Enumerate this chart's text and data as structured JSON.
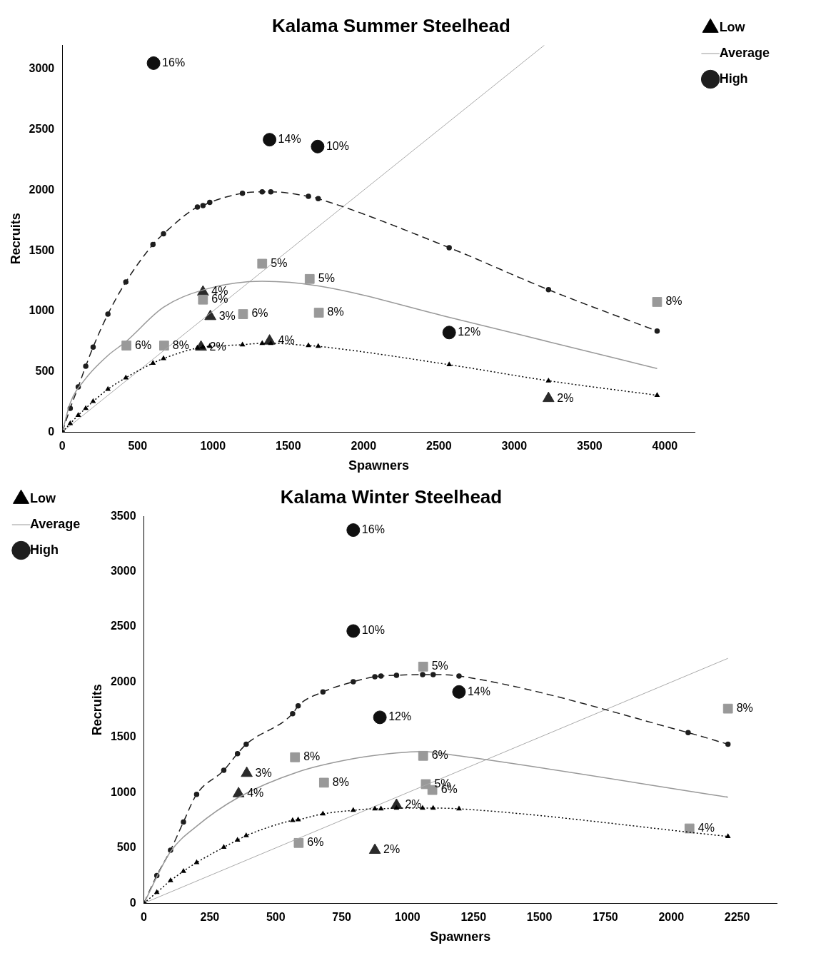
{
  "chart_data": [
    {
      "type": "line",
      "title": "Kalama Summer Steelhead",
      "xlabel": "Spawners",
      "ylabel": "Recruits",
      "xlim": [
        0,
        4200
      ],
      "ylim": [
        0,
        3200
      ],
      "xticks": [
        0,
        500,
        1000,
        1500,
        2000,
        2500,
        3000,
        3500,
        4000
      ],
      "yticks": [
        0,
        500,
        1000,
        1500,
        2000,
        2500,
        3000
      ],
      "legend": "top right",
      "series": [
        {
          "name": "Low",
          "type": "line",
          "color": "#000000",
          "marker": "triangle",
          "line_style": "dotted",
          "x": [
            0,
            53,
            106,
            156,
            205,
            303,
            422,
            602,
            672,
            897,
            934,
            979,
            1196,
            1327,
            1384,
            1634,
            1699,
            2568,
            3227,
            3948
          ],
          "values": [
            0,
            70,
            139,
            196,
            253,
            354,
            449,
            570,
            608,
            696,
            703,
            709,
            722,
            734,
            734,
            715,
            709,
            557,
            424,
            304
          ]
        },
        {
          "name": "Average",
          "type": "line",
          "color": "#999999",
          "marker": "none",
          "line_style": "solid",
          "x": [
            0,
            53,
            156,
            303,
            422,
            672,
            979,
            1327,
            1699,
            2568,
            3227,
            3948
          ],
          "values": [
            0,
            240,
            443,
            633,
            747,
            1032,
            1190,
            1247,
            1209,
            949,
            747,
            525
          ]
        },
        {
          "name": "High",
          "type": "line",
          "color": "#1e1e1e",
          "marker": "circle",
          "line_style": "dashed",
          "x": [
            0,
            53,
            106,
            156,
            205,
            303,
            422,
            602,
            672,
            897,
            934,
            979,
            1196,
            1327,
            1384,
            1634,
            1699,
            2568,
            3227,
            3948
          ],
          "values": [
            0,
            196,
            373,
            544,
            703,
            975,
            1241,
            1551,
            1639,
            1861,
            1873,
            1899,
            1975,
            1987,
            1987,
            1949,
            1930,
            1525,
            1177,
            835
          ]
        },
        {
          "type": "line",
          "color": "#aaaaaa",
          "marker": "none",
          "line_style": "solid",
          "x": [
            0,
            3200
          ],
          "values": [
            0,
            3200
          ]
        },
        {
          "type": "scatter",
          "color": "#101010",
          "marker": "circle",
          "x": [
            606,
            1376,
            1695,
            2568
          ],
          "values": [
            3051,
            2418,
            2361,
            823
          ]
        },
        {
          "type": "scatter",
          "color": "#999999",
          "marker": "square",
          "x": [
            1327,
            1642,
            934,
            1200,
            1703,
            426,
            676,
            3948
          ],
          "values": [
            1392,
            1266,
            1095,
            975,
            987,
            715,
            715,
            1076
          ]
        },
        {
          "type": "scatter",
          "color": "#2a2a2a",
          "marker": "triangle",
          "x": [
            934,
            983,
            921,
            1376,
            3227
          ],
          "values": [
            1158,
            956,
            703,
            753,
            278
          ]
        }
      ],
      "annotations": [
        {
          "text": "16%",
          "x": 606,
          "y": 3051
        },
        {
          "text": "14%",
          "x": 1376,
          "y": 2418
        },
        {
          "text": "10%",
          "x": 1695,
          "y": 2361
        },
        {
          "text": "12%",
          "x": 2568,
          "y": 823
        },
        {
          "text": "5%",
          "x": 1327,
          "y": 1392
        },
        {
          "text": "5%",
          "x": 1642,
          "y": 1266
        },
        {
          "text": "6%",
          "x": 934,
          "y": 1095
        },
        {
          "text": "6%",
          "x": 1200,
          "y": 975
        },
        {
          "text": "8%",
          "x": 1703,
          "y": 987
        },
        {
          "text": "6%",
          "x": 426,
          "y": 715
        },
        {
          "text": "8%",
          "x": 676,
          "y": 715
        },
        {
          "text": "8%",
          "x": 3948,
          "y": 1076
        },
        {
          "text": "4%",
          "x": 934,
          "y": 1158
        },
        {
          "text": "3%",
          "x": 983,
          "y": 956
        },
        {
          "text": "2%",
          "x": 921,
          "y": 703
        },
        {
          "text": "4%",
          "x": 1376,
          "y": 753
        },
        {
          "text": "2%",
          "x": 3227,
          "y": 278
        }
      ]
    },
    {
      "type": "line",
      "title": "Kalama Winter Steelhead",
      "xlabel": "Spawners",
      "ylabel": "Recruits",
      "xlim": [
        0,
        2400
      ],
      "ylim": [
        0,
        3500
      ],
      "xticks": [
        0,
        250,
        500,
        750,
        1000,
        1250,
        1500,
        1750,
        2000,
        2250
      ],
      "yticks": [
        0,
        500,
        1000,
        1500,
        2000,
        2500,
        3000,
        3500
      ],
      "legend": "top left",
      "series": [
        {
          "name": "Low",
          "type": "line",
          "color": "#000000",
          "marker": "triangle",
          "line_style": "dotted",
          "x": [
            0,
            49,
            101,
            150,
            200,
            303,
            355,
            388,
            564,
            585,
            679,
            794,
            876,
            899,
            958,
            1057,
            1097,
            1195,
            2215
          ],
          "values": [
            0,
            98,
            204,
            289,
            368,
            506,
            571,
            611,
            749,
            755,
            808,
            840,
            854,
            854,
            860,
            860,
            860,
            854,
            604
          ]
        },
        {
          "name": "Average",
          "type": "line",
          "color": "#999999",
          "marker": "none",
          "line_style": "solid",
          "x": [
            0,
            101,
            200,
            355,
            585,
            794,
            958,
            1057,
            1195,
            2215
          ],
          "values": [
            0,
            466,
            696,
            952,
            1188,
            1307,
            1359,
            1372,
            1333,
            959
          ]
        },
        {
          "name": "High",
          "type": "line",
          "color": "#1e1e1e",
          "marker": "circle",
          "line_style": "dashed",
          "x": [
            0,
            49,
            101,
            150,
            200,
            303,
            355,
            388,
            564,
            585,
            679,
            794,
            876,
            899,
            958,
            1057,
            1097,
            1195,
            2064,
            2215
          ],
          "values": [
            0,
            250,
            479,
            735,
            985,
            1202,
            1353,
            1438,
            1714,
            1786,
            1911,
            2003,
            2049,
            2055,
            2062,
            2068,
            2068,
            2055,
            1543,
            1438
          ]
        },
        {
          "type": "line",
          "color": "#aaaaaa",
          "marker": "none",
          "line_style": "solid",
          "x": [
            0,
            2215
          ],
          "values": [
            0,
            2215
          ]
        },
        {
          "type": "scatter",
          "color": "#101010",
          "marker": "circle",
          "x": [
            794,
            794,
            1195,
            895
          ],
          "values": [
            3375,
            2462,
            1911,
            1681
          ]
        },
        {
          "type": "scatter",
          "color": "#999999",
          "marker": "square",
          "x": [
            1059,
            573,
            1059,
            683,
            1069,
            1094,
            587,
            2069,
            2215
          ],
          "values": [
            2140,
            1320,
            1333,
            1090,
            1077,
            1024,
            545,
            676,
            1760
          ]
        },
        {
          "type": "scatter",
          "color": "#2a2a2a",
          "marker": "triangle",
          "x": [
            390,
            359,
            958,
            876
          ],
          "values": [
            1175,
            991,
            886,
            479
          ]
        }
      ],
      "annotations": [
        {
          "text": "16%",
          "x": 794,
          "y": 3375
        },
        {
          "text": "10%",
          "x": 794,
          "y": 2462
        },
        {
          "text": "14%",
          "x": 1195,
          "y": 1911
        },
        {
          "text": "12%",
          "x": 895,
          "y": 1681
        },
        {
          "text": "5%",
          "x": 1059,
          "y": 2140
        },
        {
          "text": "8%",
          "x": 573,
          "y": 1320
        },
        {
          "text": "6%",
          "x": 1059,
          "y": 1333
        },
        {
          "text": "8%",
          "x": 683,
          "y": 1090
        },
        {
          "text": "5%",
          "x": 1069,
          "y": 1077
        },
        {
          "text": "6%",
          "x": 1094,
          "y": 1024
        },
        {
          "text": "6%",
          "x": 587,
          "y": 545
        },
        {
          "text": "4%",
          "x": 2069,
          "y": 676
        },
        {
          "text": "8%",
          "x": 2215,
          "y": 1760
        },
        {
          "text": "3%",
          "x": 390,
          "y": 1175
        },
        {
          "text": "4%",
          "x": 359,
          "y": 991
        },
        {
          "text": "2%",
          "x": 958,
          "y": 886
        },
        {
          "text": "2%",
          "x": 876,
          "y": 479
        }
      ]
    }
  ]
}
